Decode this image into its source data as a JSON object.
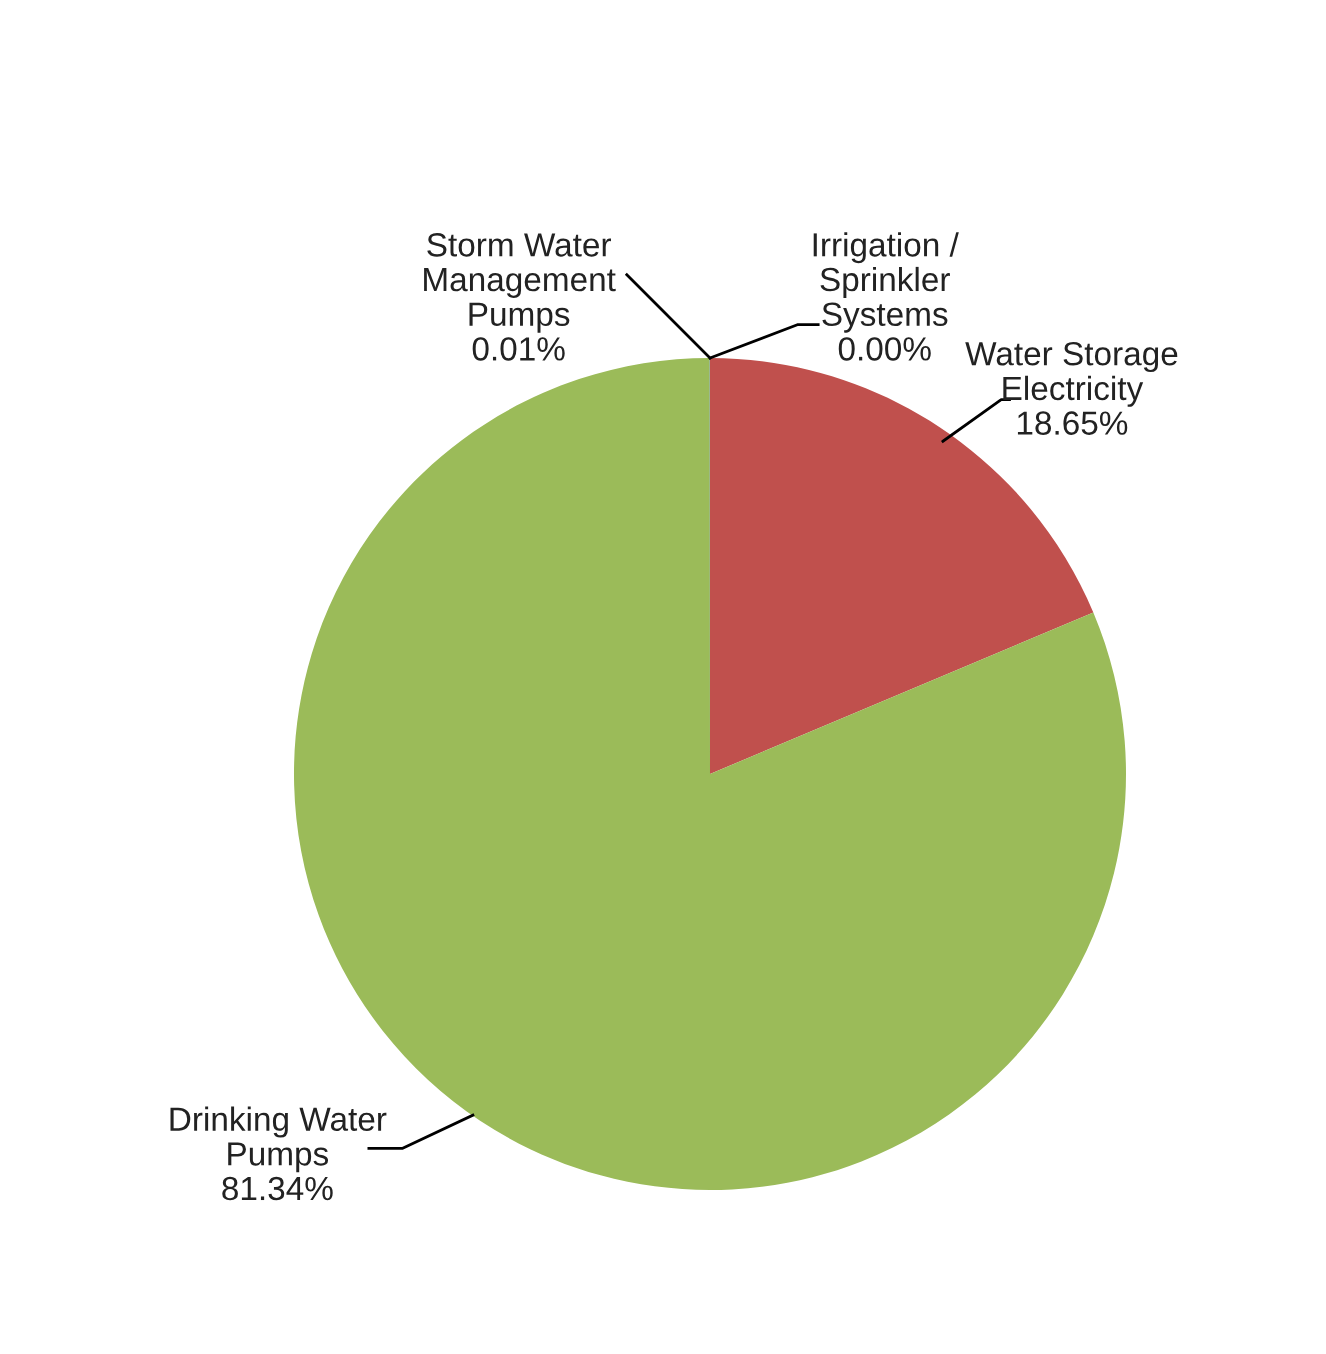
{
  "chart_data": {
    "type": "pie",
    "categories": [
      "Water Storage\nElectricity",
      "Drinking Water\nPumps",
      "Storm Water\nManagement\nPumps",
      "Irrigation /\nSprinkler\nSystems"
    ],
    "values": [
      18.65,
      81.34,
      0.01,
      0.0
    ],
    "value_labels": [
      "18.65%",
      "81.34%",
      "0.01%",
      "0.00%"
    ],
    "colors": [
      "#c0504d",
      "#9bbb59",
      "#4f81bd",
      "#8064a2"
    ]
  }
}
